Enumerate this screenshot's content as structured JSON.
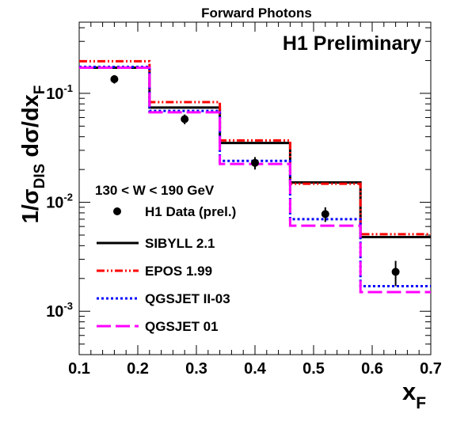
{
  "chart_data": {
    "type": "line",
    "title": "Forward Photons",
    "annotation": "H1 Preliminary",
    "cut_label": "130 < W < 190 GeV",
    "xlim": [
      0.1,
      0.7
    ],
    "ylim": [
      0.0004,
      0.45
    ],
    "yscale": "log",
    "x_ticks": [
      "0.1",
      "0.2",
      "0.3",
      "0.4",
      "0.5",
      "0.6",
      "0.7"
    ],
    "y_ticks": [
      {
        "value": 0.1,
        "base": "10",
        "exp": "-1"
      },
      {
        "value": 0.01,
        "base": "10",
        "exp": "-2"
      },
      {
        "value": 0.001,
        "base": "10",
        "exp": "-3"
      }
    ],
    "ylabel": {
      "prefix": "1/σ",
      "sub": "DIS",
      "mid": " dσ/dx",
      "sub2": "F"
    },
    "xlabel": {
      "main": "x",
      "sub": "F"
    },
    "bin_edges": [
      0.1,
      0.22,
      0.34,
      0.46,
      0.58,
      0.7
    ],
    "data": {
      "name": "H1 Data (prel.)",
      "x": [
        0.16,
        0.28,
        0.4,
        0.52,
        0.64
      ],
      "y": [
        0.135,
        0.058,
        0.023,
        0.0078,
        0.0023
      ],
      "err": [
        0.012,
        0.006,
        0.003,
        0.0012,
        0.0006
      ]
    },
    "series": [
      {
        "name": "SIBYLL 2.1",
        "color": "#000000",
        "dash": "",
        "values": [
          0.172,
          0.074,
          0.035,
          0.0152,
          0.0048
        ]
      },
      {
        "name": "EPOS 1.99",
        "color": "#ff0000",
        "dash": "10,3,2,3,2,3",
        "values": [
          0.197,
          0.083,
          0.037,
          0.0148,
          0.0051
        ]
      },
      {
        "name": "QGSJET II-03",
        "color": "#0000ff",
        "dash": "3,3",
        "values": [
          0.175,
          0.069,
          0.024,
          0.007,
          0.0017
        ]
      },
      {
        "name": "QGSJET 01",
        "color": "#ff00ff",
        "dash": "18,6",
        "values": [
          0.172,
          0.067,
          0.0225,
          0.0061,
          0.0015
        ]
      }
    ]
  }
}
